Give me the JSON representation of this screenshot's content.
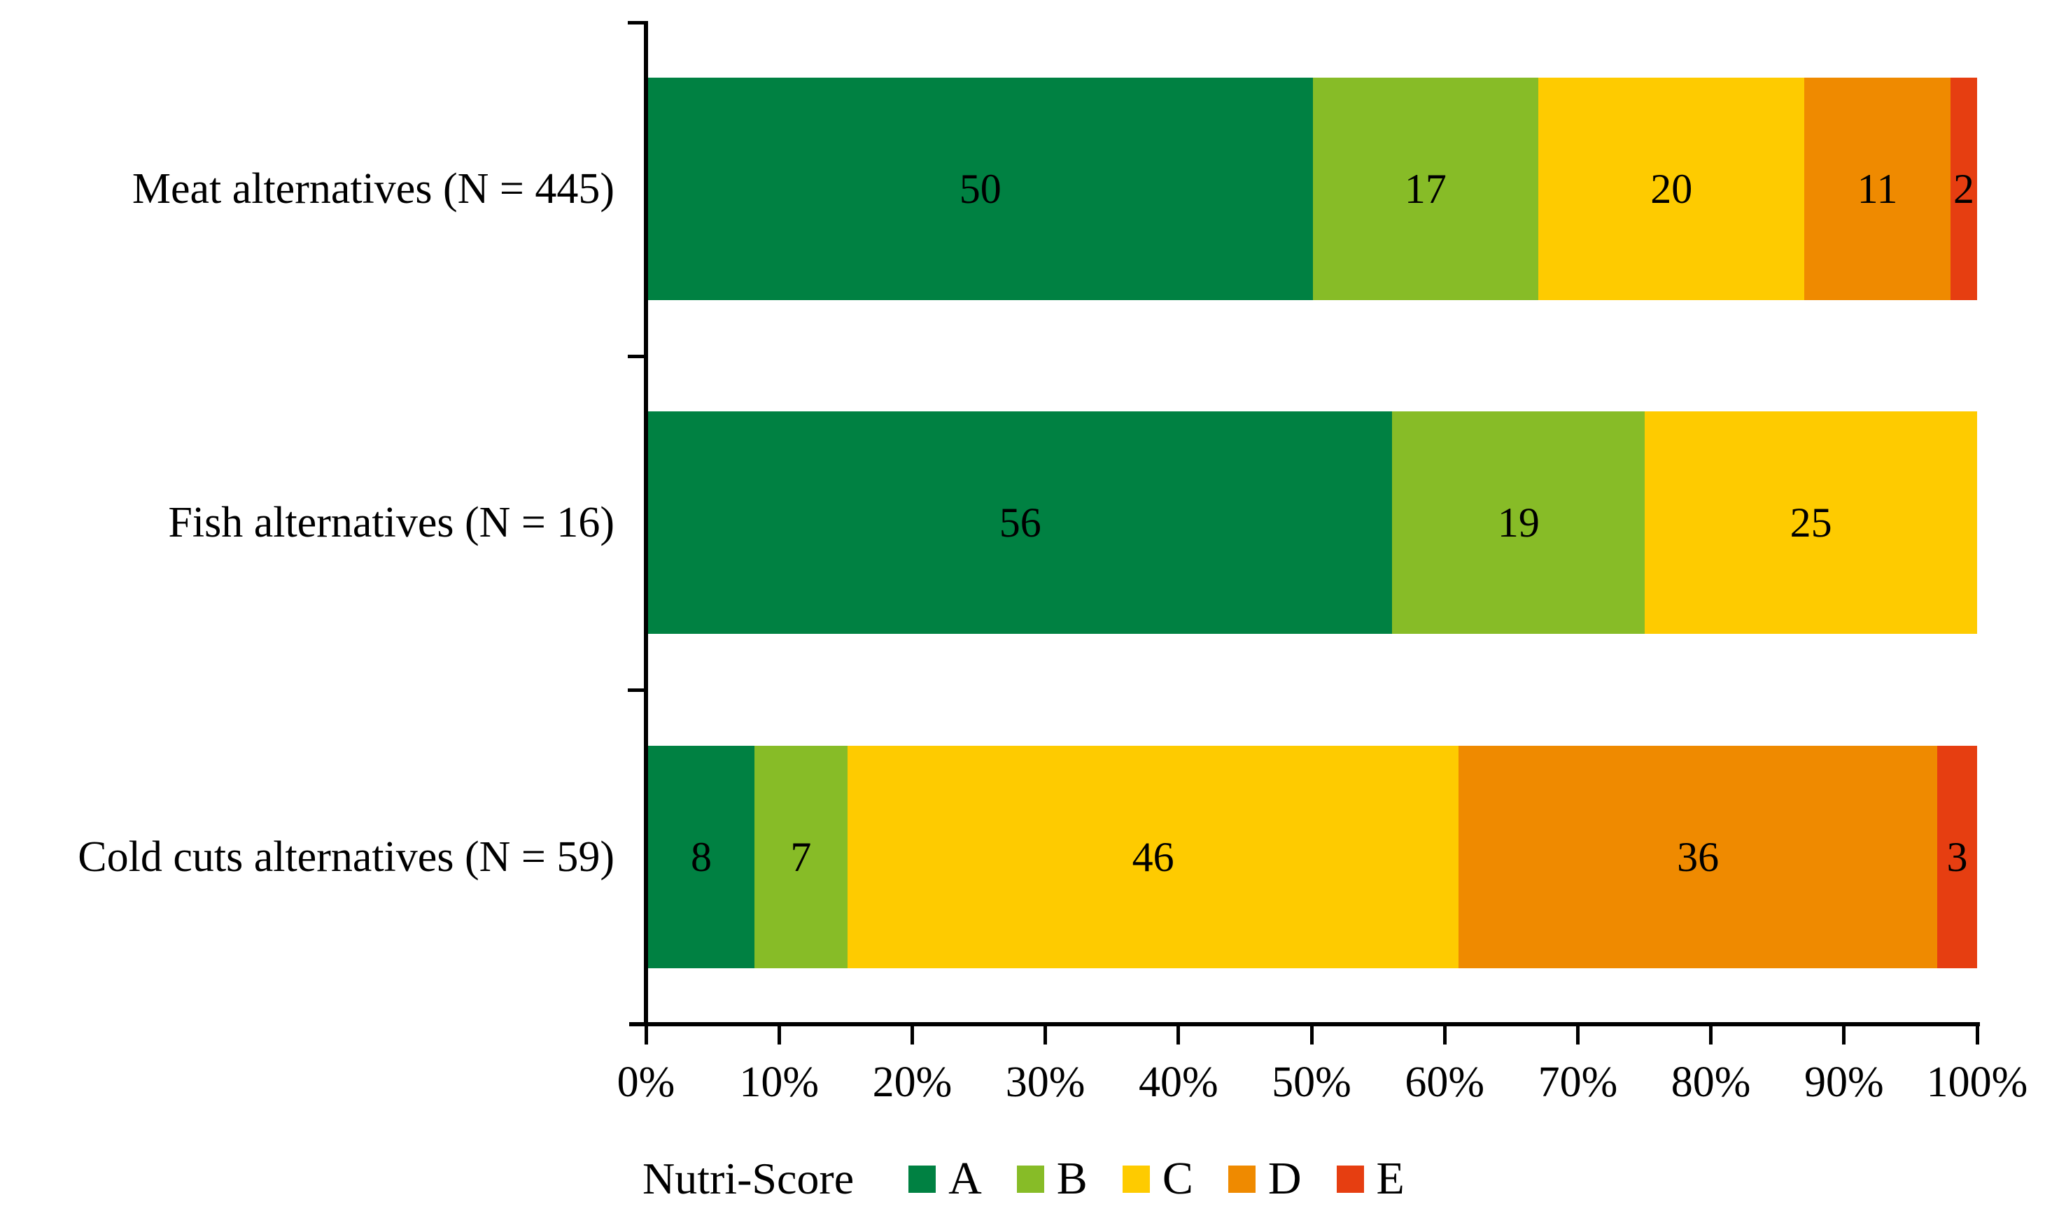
{
  "chart_data": {
    "type": "bar",
    "variant": "horizontal-stacked-100pct",
    "title": "",
    "xlabel": "",
    "ylabel": "",
    "xlim": [
      0,
      100
    ],
    "grid": false,
    "categories": [
      "Meat alternatives (N = 445)",
      "Fish alternatives (N = 16)",
      "Cold cuts alternatives (N = 59)"
    ],
    "series": [
      {
        "name": "A",
        "color": "#008142",
        "values": [
          50,
          56,
          8
        ]
      },
      {
        "name": "B",
        "color": "#87BC27",
        "values": [
          17,
          19,
          7
        ]
      },
      {
        "name": "C",
        "color": "#FECB00",
        "values": [
          20,
          25,
          46
        ]
      },
      {
        "name": "D",
        "color": "#EF8A00",
        "values": [
          11,
          0,
          36
        ]
      },
      {
        "name": "E",
        "color": "#E63E11",
        "values": [
          2,
          0,
          3
        ]
      }
    ],
    "x_tick_labels": [
      "0%",
      "10%",
      "20%",
      "30%",
      "40%",
      "50%",
      "60%",
      "70%",
      "80%",
      "90%",
      "100%"
    ],
    "legend": {
      "title": "Nutri-Score",
      "position": "bottom",
      "entries": [
        {
          "label": "A",
          "color": "#008142"
        },
        {
          "label": "B",
          "color": "#87BC27"
        },
        {
          "label": "C",
          "color": "#FECB00"
        },
        {
          "label": "D",
          "color": "#EF8A00"
        },
        {
          "label": "E",
          "color": "#E63E11"
        }
      ]
    }
  }
}
